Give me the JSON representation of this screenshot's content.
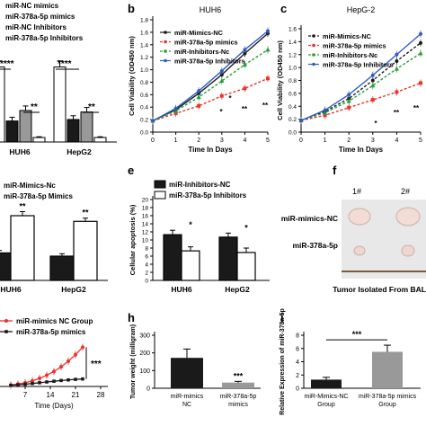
{
  "panel_letters": {
    "b": "b",
    "c": "c",
    "e": "e",
    "f": "f",
    "h": "h",
    "i": "i"
  },
  "chart_data": [
    {
      "panel": "a-top",
      "type": "bar",
      "legend": [
        "miR-NC mimics",
        "miR-378a-5p mimics",
        "miR-NC Inhibitors",
        "miR-378a-5p Inhibitors"
      ],
      "categories": [
        "HUH6",
        "HepG2"
      ],
      "series": [
        {
          "name": "miR-NC mimics",
          "values": [
            1.0,
            1.0
          ],
          "err": [
            0.08,
            0.08
          ],
          "color": "#ffffff"
        },
        {
          "name": "miR-378a-5p mimics",
          "values": [
            0.28,
            0.3
          ],
          "err": [
            0.05,
            0.05
          ],
          "color": "#1a1a1a"
        },
        {
          "name": "miR-NC Inhibitors",
          "values": [
            0.42,
            0.4
          ],
          "err": [
            0.06,
            0.06
          ],
          "color": "#999999"
        },
        {
          "name": "miR-378a-5p Inhibitors",
          "values": [
            0.06,
            0.06
          ],
          "err": [
            0.01,
            0.01
          ],
          "color": "#ffffff"
        }
      ],
      "ylim": [
        0,
        1.15
      ],
      "annotations": [
        "****",
        "**",
        "****",
        "**"
      ]
    },
    {
      "panel": "b",
      "type": "line",
      "title": "HUH6",
      "xlabel": "Time In Days",
      "ylabel": "Cell Viability (OD450 nm)",
      "x": [
        0,
        1,
        2,
        3,
        4,
        5
      ],
      "xlim": [
        0,
        5
      ],
      "ylim": [
        0,
        1.8
      ],
      "yticks": [
        0.0,
        0.2,
        0.4,
        0.6,
        0.8,
        1.0,
        1.2,
        1.4,
        1.6,
        1.8
      ],
      "series": [
        {
          "name": "miR-Mimics-NC",
          "values": [
            0.18,
            0.36,
            0.62,
            0.92,
            1.26,
            1.58
          ],
          "color": "#1a1a1a",
          "dash": false
        },
        {
          "name": "miR-378a-5p mimics",
          "values": [
            0.18,
            0.3,
            0.42,
            0.58,
            0.7,
            0.86
          ],
          "color": "#e8352b",
          "dash": true
        },
        {
          "name": "miR-Inhibitors-Nc",
          "values": [
            0.18,
            0.34,
            0.56,
            0.82,
            1.08,
            1.32
          ],
          "color": "#2a9d3a",
          "dash": true
        },
        {
          "name": "miR-378a-5p Inhibitors",
          "values": [
            0.18,
            0.38,
            0.66,
            0.98,
            1.32,
            1.62
          ],
          "color": "#2f5fc4",
          "dash": false
        }
      ],
      "annotations": [
        "*",
        "*",
        "**",
        "**"
      ]
    },
    {
      "panel": "c",
      "type": "line",
      "title": "HepG-2",
      "xlabel": "Time In Days",
      "ylabel": "Cell Viability (OD450 nm)",
      "x": [
        0,
        1,
        2,
        3,
        4,
        5
      ],
      "xlim": [
        0,
        5
      ],
      "ylim": [
        0,
        1.6
      ],
      "yticks": [
        0.0,
        0.2,
        0.4,
        0.6,
        0.8,
        1.0,
        1.2,
        1.4,
        1.6
      ],
      "series": [
        {
          "name": "miR-Mimics-NC",
          "values": [
            0.18,
            0.32,
            0.52,
            0.8,
            1.1,
            1.38
          ],
          "color": "#1a1a1a",
          "dash": true
        },
        {
          "name": "miR-378a-5p mimics",
          "values": [
            0.18,
            0.26,
            0.38,
            0.5,
            0.62,
            0.76
          ],
          "color": "#e8352b",
          "dash": true
        },
        {
          "name": "miR-Inhibitors-Nc",
          "values": [
            0.18,
            0.3,
            0.48,
            0.72,
            0.98,
            1.22
          ],
          "color": "#2a9d3a",
          "dash": true
        },
        {
          "name": "miR-378a-5p Inhibitors",
          "values": [
            0.18,
            0.34,
            0.58,
            0.88,
            1.2,
            1.52
          ],
          "color": "#2f5fc4",
          "dash": false
        }
      ],
      "annotations": [
        "*",
        "**",
        "**"
      ]
    },
    {
      "panel": "d-left",
      "type": "bar",
      "legend": [
        "miR-Mimics-Nc",
        "miR-378a-5p Mimics"
      ],
      "categories": [
        "HUH6",
        "HepG2"
      ],
      "series": [
        {
          "name": "miR-Mimics-Nc",
          "values": [
            0.34,
            0.3
          ],
          "err": [
            0.03,
            0.03
          ],
          "color": "#1a1a1a"
        },
        {
          "name": "miR-378a-5p Mimics",
          "values": [
            0.8,
            0.73
          ],
          "err": [
            0.05,
            0.04
          ],
          "color": "#ffffff"
        }
      ],
      "ylim": [
        0,
        1.0
      ],
      "annotations": [
        "**",
        "**"
      ]
    },
    {
      "panel": "e",
      "type": "bar",
      "ylabel": "Cellular apoptosis (%)",
      "legend": [
        "miR-Inhibitors-NC",
        "miR-378a-5p Inhibitors"
      ],
      "categories": [
        "HUH6",
        "HepG2"
      ],
      "series": [
        {
          "name": "miR-Inhibitors-NC",
          "values": [
            11.3,
            10.7
          ],
          "err": [
            1.1,
            1.0
          ],
          "color": "#1a1a1a"
        },
        {
          "name": "miR-378a-5p Inhibitors",
          "values": [
            7.3,
            6.9
          ],
          "err": [
            1.0,
            1.1
          ],
          "color": "#ffffff"
        }
      ],
      "ylim": [
        0,
        20
      ],
      "yticks": [
        0,
        2,
        4,
        6,
        8,
        10,
        12,
        14,
        16,
        18,
        20
      ],
      "annotations": [
        "*",
        "*"
      ]
    },
    {
      "panel": "g",
      "type": "line",
      "xlabel": "Time (Days)",
      "xticks": [
        7,
        14,
        21,
        28
      ],
      "xlim": [
        0,
        30
      ],
      "ylim": [
        0,
        2500
      ],
      "series": [
        {
          "name": "miR-mimics NC Group",
          "x": [
            3,
            5,
            7,
            9,
            11,
            13,
            15,
            17,
            19,
            21,
            23
          ],
          "values": [
            80,
            130,
            200,
            300,
            430,
            600,
            800,
            1050,
            1350,
            1700,
            2100
          ],
          "color": "#e8352b"
        },
        {
          "name": "miR-378a-5p mimics",
          "x": [
            3,
            5,
            7,
            9,
            11,
            13,
            15,
            17,
            19,
            21,
            23
          ],
          "values": [
            60,
            90,
            120,
            160,
            200,
            240,
            280,
            320,
            350,
            380,
            400
          ],
          "color": "#1a1a1a"
        }
      ],
      "annotations": [
        "***"
      ]
    },
    {
      "panel": "h",
      "type": "bar",
      "ylabel": "Tumor weight (milligram)",
      "categories": [
        "miR-mimics NC",
        "miR-378a-5p mimics"
      ],
      "values": [
        172,
        32
      ],
      "err": [
        50,
        7
      ],
      "colors": [
        "#1a1a1a",
        "#999999"
      ],
      "ylim": [
        0,
        300
      ],
      "yticks": [
        0,
        100,
        200,
        300
      ],
      "annotations": [
        "***"
      ]
    },
    {
      "panel": "i",
      "type": "bar",
      "ylabel": "Relative Expression of miR-378a-5p",
      "categories": [
        "miR-Mimics-NC Group",
        "miR-378a-5p mimics Group"
      ],
      "values": [
        1.3,
        5.5
      ],
      "err": [
        0.35,
        1.0
      ],
      "colors": [
        "#1a1a1a",
        "#999999"
      ],
      "ylim": [
        0,
        8
      ],
      "yticks": [
        0,
        2,
        4,
        6,
        8
      ],
      "annotations": [
        "***"
      ]
    }
  ],
  "photo": {
    "col1": "1#",
    "col2": "2#",
    "row1": "miR-mimics-NC",
    "row2": "miR-378a-5p",
    "caption": "Tumor Isolated From BAL"
  }
}
